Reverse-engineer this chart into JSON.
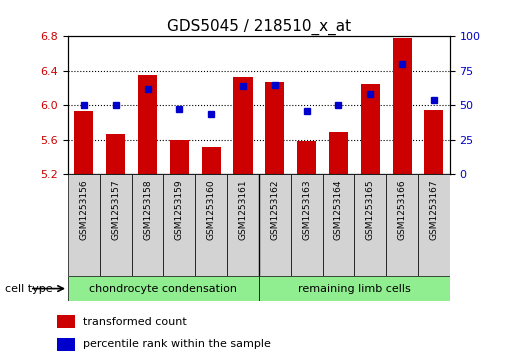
{
  "title": "GDS5045 / 218510_x_at",
  "samples": [
    "GSM1253156",
    "GSM1253157",
    "GSM1253158",
    "GSM1253159",
    "GSM1253160",
    "GSM1253161",
    "GSM1253162",
    "GSM1253163",
    "GSM1253164",
    "GSM1253165",
    "GSM1253166",
    "GSM1253167"
  ],
  "red_values": [
    5.93,
    5.67,
    6.35,
    5.6,
    5.52,
    6.33,
    6.27,
    5.58,
    5.69,
    6.25,
    6.78,
    5.94
  ],
  "blue_values": [
    50,
    50,
    62,
    47,
    44,
    64,
    65,
    46,
    50,
    58,
    80,
    54
  ],
  "ylim_left": [
    5.2,
    6.8
  ],
  "ylim_right": [
    0,
    100
  ],
  "yticks_left": [
    5.2,
    5.6,
    6.0,
    6.4,
    6.8
  ],
  "yticks_right": [
    0,
    25,
    50,
    75,
    100
  ],
  "group1_label": "chondrocyte condensation",
  "group2_label": "remaining limb cells",
  "group_separator": 6,
  "cell_type_label": "cell type",
  "bar_color": "#cc0000",
  "dot_color": "#0000cc",
  "bar_bottom": 5.2,
  "bg_color": "#d3d3d3",
  "green_color": "#90ee90",
  "legend_red": "transformed count",
  "legend_blue": "percentile rank within the sample",
  "title_fontsize": 11,
  "tick_fontsize": 8
}
